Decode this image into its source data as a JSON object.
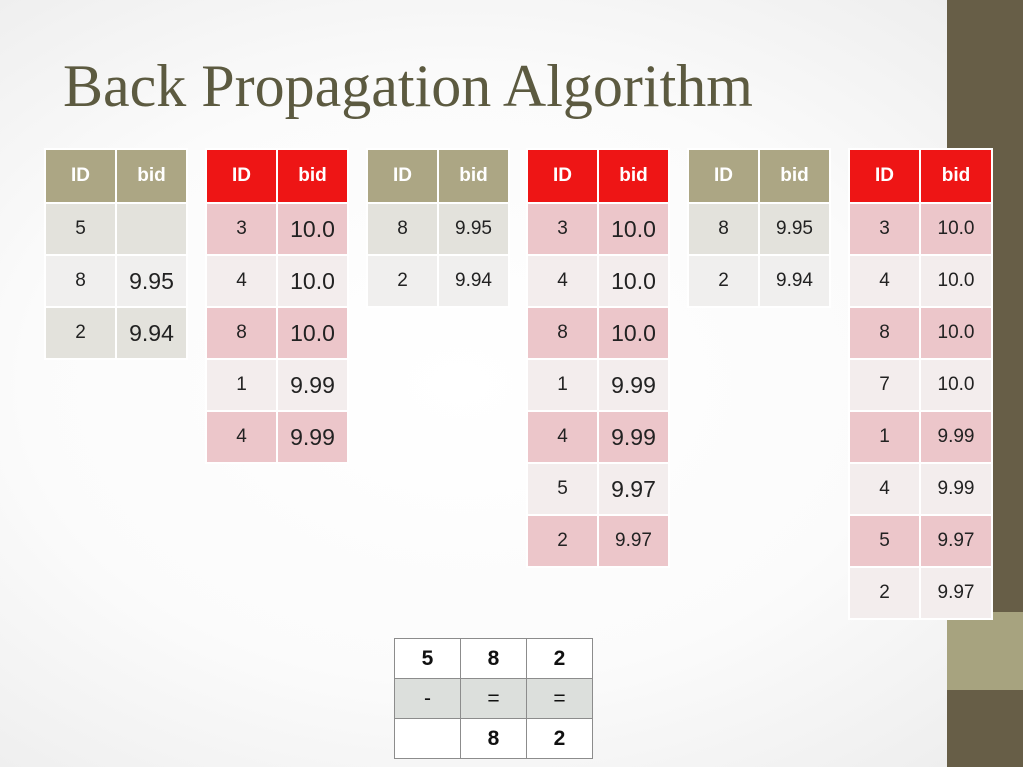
{
  "slide": {
    "title": "Back Propagation Algorithm"
  },
  "tables": [
    {
      "headers": [
        "ID",
        "bid"
      ],
      "rows": [
        [
          "5",
          ""
        ],
        [
          "8",
          "9.95"
        ],
        [
          "2",
          "9.94"
        ]
      ]
    },
    {
      "headers": [
        "ID",
        "bid"
      ],
      "rows": [
        [
          "3",
          "10.0"
        ],
        [
          "4",
          "10.0"
        ],
        [
          "8",
          "10.0"
        ],
        [
          "1",
          "9.99"
        ],
        [
          "4",
          "9.99"
        ]
      ]
    },
    {
      "headers": [
        "ID",
        "bid"
      ],
      "rows": [
        [
          "8",
          "9.95"
        ],
        [
          "2",
          "9.94"
        ]
      ]
    },
    {
      "headers": [
        "ID",
        "bid"
      ],
      "rows": [
        [
          "3",
          "10.0"
        ],
        [
          "4",
          "10.0"
        ],
        [
          "8",
          "10.0"
        ],
        [
          "1",
          "9.99"
        ],
        [
          "4",
          "9.99"
        ],
        [
          "5",
          "9.97"
        ],
        [
          "2",
          "9.97"
        ]
      ]
    },
    {
      "headers": [
        "ID",
        "bid"
      ],
      "rows": [
        [
          "8",
          "9.95"
        ],
        [
          "2",
          "9.94"
        ]
      ]
    },
    {
      "headers": [
        "ID",
        "bid"
      ],
      "rows": [
        [
          "3",
          "10.0"
        ],
        [
          "4",
          "10.0"
        ],
        [
          "8",
          "10.0"
        ],
        [
          "7",
          "10.0"
        ],
        [
          "1",
          "9.99"
        ],
        [
          "4",
          "9.99"
        ],
        [
          "5",
          "9.97"
        ],
        [
          "2",
          "9.97"
        ]
      ]
    }
  ],
  "result_table": {
    "rows": [
      [
        "5",
        "8",
        "2"
      ],
      [
        "-",
        "=",
        "="
      ],
      [
        "",
        "8",
        "2"
      ]
    ]
  },
  "colors": {
    "title": "#5c5a40",
    "olive_header": "#aca684",
    "red_header": "#ee1515",
    "decor_dark": "#675e47",
    "decor_light": "#a7a37f"
  }
}
